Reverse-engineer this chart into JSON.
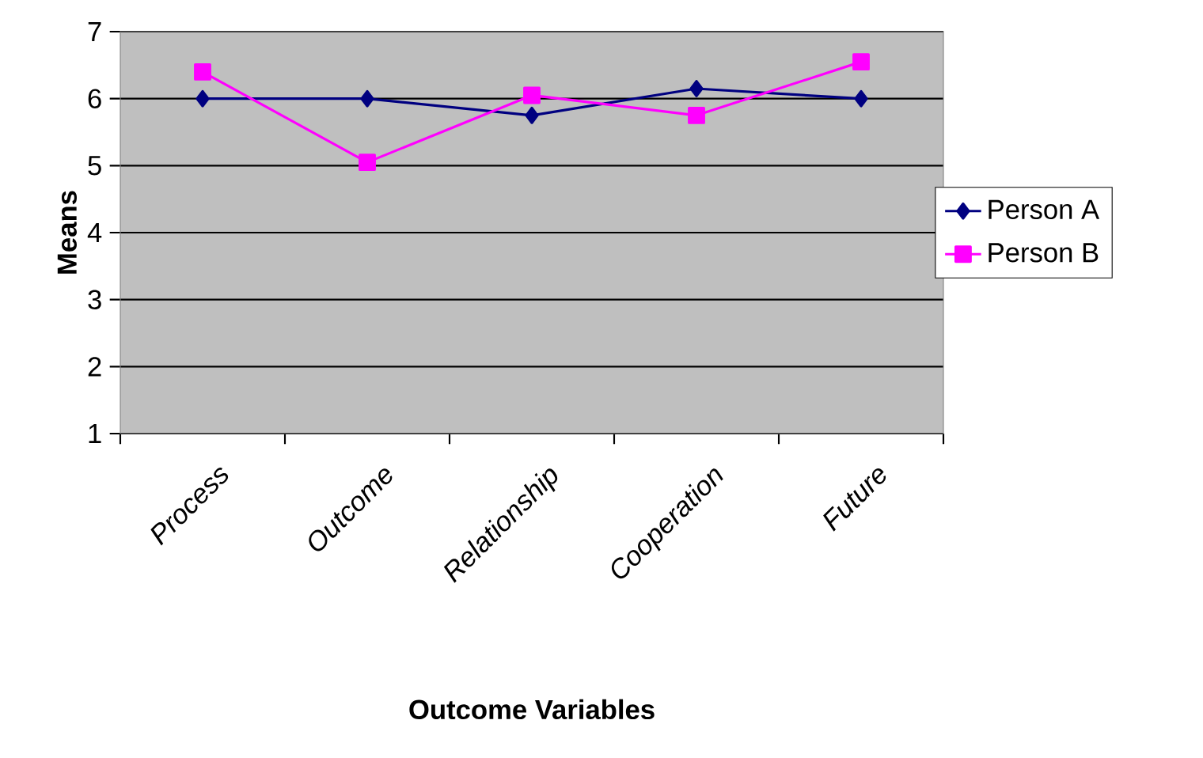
{
  "chart_data": {
    "type": "line",
    "xlabel": "Outcome Variables",
    "ylabel": "Means",
    "categories": [
      "Process",
      "Outcome",
      "Relationship",
      "Cooperation",
      "Future"
    ],
    "series": [
      {
        "name": "Person A",
        "color": "#000080",
        "marker": "diamond",
        "values": [
          6.0,
          6.0,
          5.75,
          6.15,
          6.0
        ]
      },
      {
        "name": "Person B",
        "color": "#ff00ff",
        "marker": "square",
        "values": [
          6.4,
          5.05,
          6.05,
          5.75,
          6.55
        ]
      }
    ],
    "ylim": [
      1,
      7
    ],
    "yticks": [
      1,
      2,
      3,
      4,
      5,
      6,
      7
    ],
    "grid": "y",
    "legend": "right",
    "line_style": "solid"
  }
}
